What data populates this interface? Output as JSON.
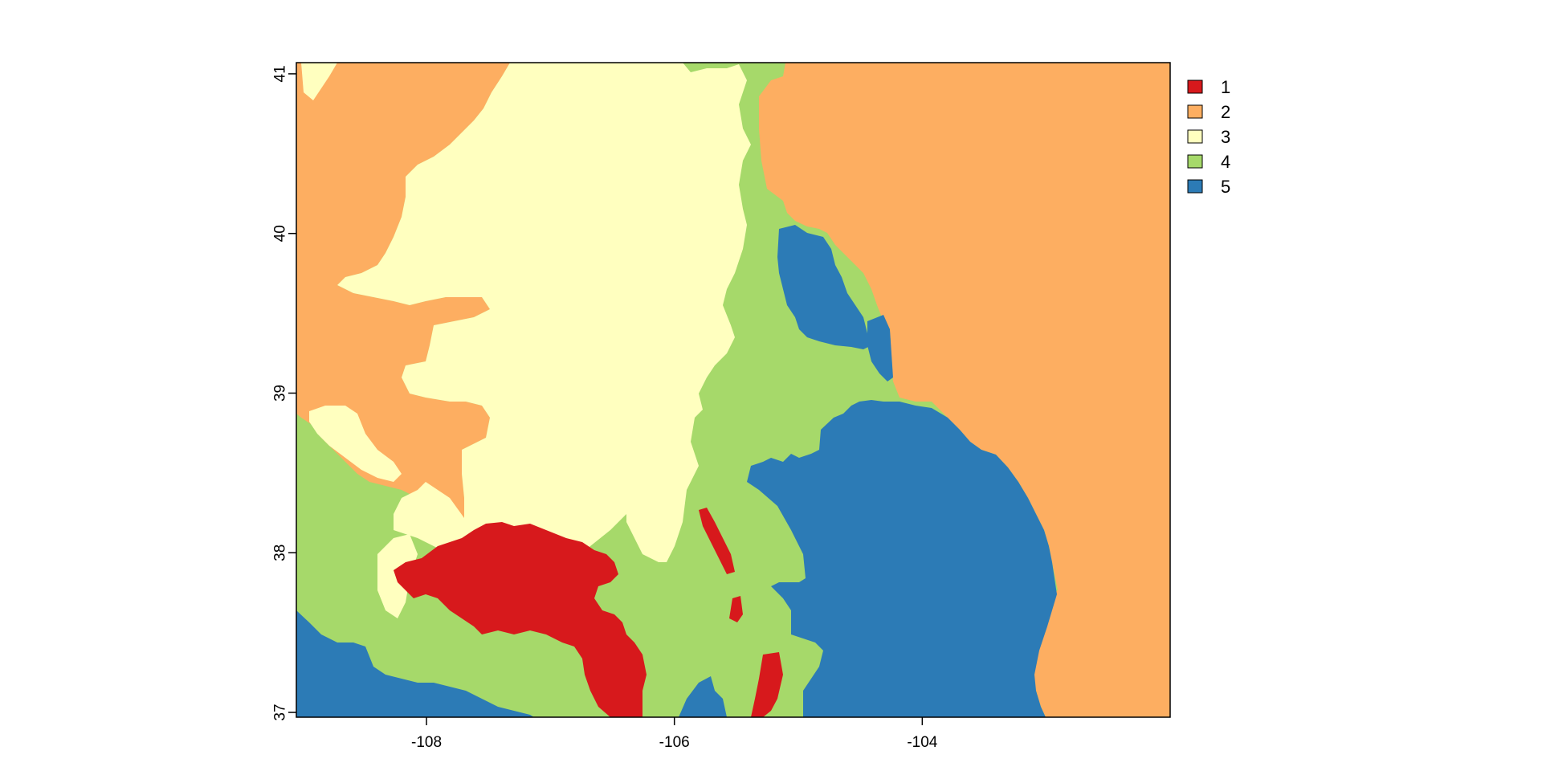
{
  "map": {
    "x_ticks": [
      "-108",
      "-106",
      "-104"
    ],
    "y_ticks": [
      "41",
      "40",
      "39",
      "38",
      "37"
    ],
    "x_range": [
      -109.05,
      -102.0
    ],
    "y_range": [
      36.97,
      41.07
    ],
    "x_tick_values": [
      -108,
      -106,
      -104
    ],
    "y_tick_values": [
      41,
      40,
      39,
      38,
      37
    ],
    "colors": {
      "1": "#d7191c",
      "2": "#fdae61",
      "3": "#ffffbf",
      "4": "#a6d96a",
      "5": "#2c7bb6"
    }
  },
  "legend": {
    "items": [
      {
        "label": "1",
        "color": "#d7191c"
      },
      {
        "label": "2",
        "color": "#fdae61"
      },
      {
        "label": "3",
        "color": "#ffffbf"
      },
      {
        "label": "4",
        "color": "#a6d96a"
      },
      {
        "label": "5",
        "color": "#2c7bb6"
      }
    ]
  }
}
